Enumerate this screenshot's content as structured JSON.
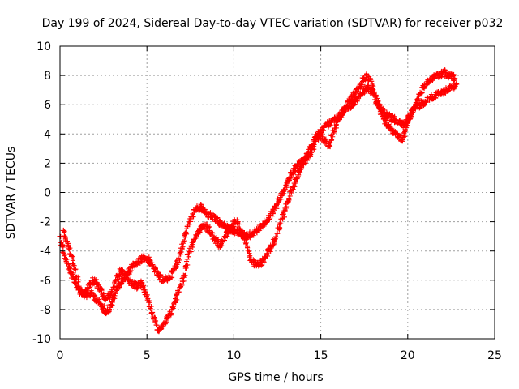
{
  "chart_data": {
    "type": "scatter",
    "title": "Day 199 of 2024, Sidereal Day-to-day VTEC variation (SDTVAR) for receiver p032",
    "xlabel": "GPS time / hours",
    "ylabel": "SDTVAR / TECUs",
    "xlim": [
      0,
      25
    ],
    "ylim": [
      -10,
      10
    ],
    "xticks": [
      0,
      5,
      10,
      15,
      20,
      25
    ],
    "yticks": [
      -10,
      -8,
      -6,
      -4,
      -2,
      0,
      2,
      4,
      6,
      8,
      10
    ],
    "grid": true,
    "marker": "plus",
    "color": "#ff0000",
    "series": [
      {
        "x": [
          0.0,
          0.3,
          0.6,
          0.9,
          1.2,
          1.5,
          1.8,
          2.1,
          2.4,
          2.7,
          3.0,
          3.3,
          3.6,
          3.9,
          4.2,
          4.5,
          4.8,
          5.1,
          5.4,
          5.7,
          6.0,
          6.3,
          6.6,
          6.9,
          7.2,
          7.5,
          7.8,
          8.1,
          8.4,
          8.7,
          9.0,
          9.3,
          9.6,
          9.9,
          10.2,
          10.5,
          10.8,
          11.1,
          11.4,
          11.7,
          12.0,
          12.3,
          12.6,
          12.9,
          13.2,
          13.5,
          13.8,
          14.1,
          14.4,
          14.7,
          15.0,
          15.3,
          15.6,
          15.9,
          16.2,
          16.5,
          16.8,
          17.1,
          17.4,
          17.7,
          18.0,
          18.3,
          18.6,
          18.9,
          19.2,
          19.5,
          19.8,
          20.1,
          20.4,
          20.7,
          21.0,
          21.3,
          21.6,
          21.9,
          22.2,
          22.5,
          22.8
        ],
        "y": [
          -3.0,
          -4.5,
          -5.5,
          -6.2,
          -6.8,
          -7.0,
          -6.9,
          -7.3,
          -7.8,
          -8.2,
          -7.5,
          -6.5,
          -6.0,
          -5.5,
          -5.0,
          -4.8,
          -4.4,
          -4.6,
          -5.2,
          -5.8,
          -6.0,
          -5.8,
          -5.2,
          -4.2,
          -2.8,
          -1.8,
          -1.2,
          -1.0,
          -1.4,
          -1.6,
          -1.9,
          -2.2,
          -2.4,
          -2.6,
          -2.7,
          -2.9,
          -3.0,
          -2.8,
          -2.5,
          -2.2,
          -1.8,
          -1.2,
          -0.5,
          0.2,
          1.0,
          1.6,
          2.0,
          2.2,
          2.6,
          3.5,
          4.2,
          4.6,
          4.8,
          5.0,
          5.4,
          5.8,
          6.0,
          6.4,
          6.8,
          7.2,
          6.8,
          6.0,
          5.5,
          5.2,
          5.0,
          4.8,
          4.6,
          5.2,
          5.8,
          6.0,
          6.2,
          6.5,
          6.6,
          6.8,
          7.0,
          7.2,
          7.4
        ]
      },
      {
        "x": [
          0.2,
          0.5,
          0.8,
          1.1,
          1.4,
          1.7,
          2.0,
          2.3,
          2.6,
          2.9,
          3.2,
          3.5,
          3.8,
          4.1,
          4.4,
          4.7,
          5.0,
          5.3,
          5.6,
          5.9,
          6.2,
          6.5,
          6.8,
          7.1,
          7.4,
          7.7,
          8.0,
          8.3,
          8.6,
          8.9,
          9.2,
          9.5,
          9.8,
          10.1,
          10.4,
          10.7,
          11.0,
          11.3,
          11.6,
          11.9,
          12.2,
          12.5,
          12.8,
          13.1,
          13.4,
          13.7,
          14.0,
          14.3,
          14.6,
          14.9,
          15.2,
          15.5,
          15.8,
          16.1,
          16.4,
          16.7,
          17.0,
          17.3,
          17.6,
          17.9,
          18.2,
          18.5,
          18.8,
          19.1,
          19.4,
          19.7,
          20.0,
          20.3,
          20.6,
          20.9,
          21.2,
          21.5,
          21.8,
          22.1,
          22.4,
          22.7
        ],
        "y": [
          -2.6,
          -3.8,
          -5.0,
          -6.5,
          -7.0,
          -6.2,
          -6.0,
          -6.6,
          -7.2,
          -7.0,
          -6.0,
          -5.4,
          -5.8,
          -6.2,
          -6.4,
          -6.2,
          -7.0,
          -8.2,
          -9.4,
          -9.2,
          -8.6,
          -7.8,
          -6.8,
          -5.8,
          -4.2,
          -3.2,
          -2.6,
          -2.2,
          -2.6,
          -3.2,
          -3.6,
          -3.0,
          -2.4,
          -2.0,
          -2.6,
          -3.4,
          -4.6,
          -5.0,
          -4.8,
          -4.2,
          -3.6,
          -2.8,
          -1.8,
          -0.6,
          0.4,
          1.2,
          2.0,
          2.8,
          3.6,
          4.0,
          3.6,
          3.2,
          4.4,
          5.2,
          5.8,
          6.4,
          6.8,
          7.4,
          8.0,
          7.6,
          6.2,
          5.4,
          4.6,
          4.2,
          4.0,
          3.6,
          4.8,
          5.6,
          6.4,
          7.2,
          7.6,
          7.9,
          8.0,
          8.2,
          8.0,
          7.8
        ]
      }
    ]
  }
}
